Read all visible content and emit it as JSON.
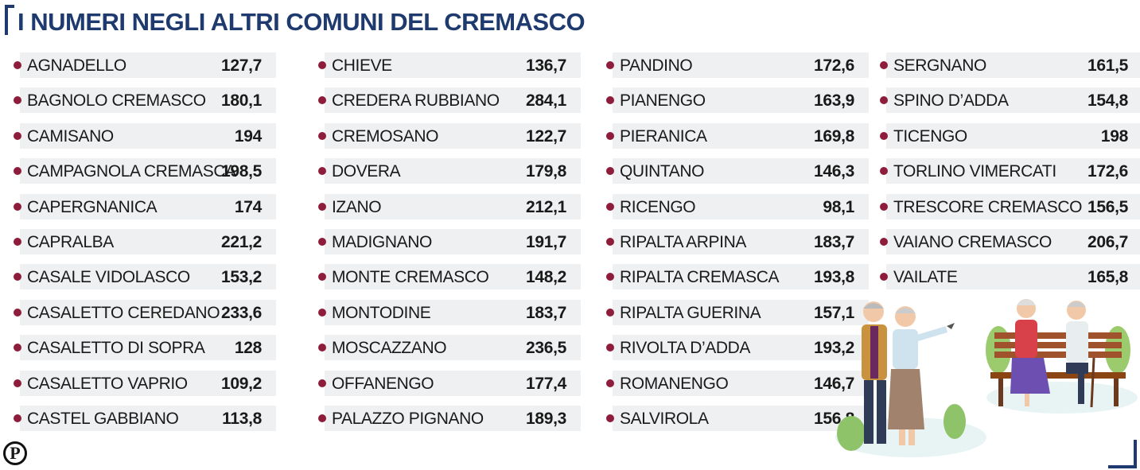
{
  "title": "I NUMERI NEGLI ALTRI COMUNI DEL CREMASCO",
  "columns": [
    [
      {
        "name": "AGNADELLO",
        "value": "127,7"
      },
      {
        "name": "BAGNOLO CREMASCO",
        "value": "180,1"
      },
      {
        "name": "CAMISANO",
        "value": "194"
      },
      {
        "name": "CAMPAGNOLA CREMASCA",
        "value": "198,5"
      },
      {
        "name": "CAPERGNANICA",
        "value": "174"
      },
      {
        "name": "CAPRALBA",
        "value": "221,2"
      },
      {
        "name": "CASALE VIDOLASCO",
        "value": "153,2"
      },
      {
        "name": "CASALETTO CEREDANO",
        "value": "233,6"
      },
      {
        "name": "CASALETTO DI SOPRA",
        "value": "128"
      },
      {
        "name": "CASALETTO VAPRIO",
        "value": "109,2"
      },
      {
        "name": "CASTEL GABBIANO",
        "value": "113,8"
      }
    ],
    [
      {
        "name": "CHIEVE",
        "value": "136,7"
      },
      {
        "name": "CREDERA RUBBIANO",
        "value": "284,1"
      },
      {
        "name": "CREMOSANO",
        "value": "122,7"
      },
      {
        "name": "DOVERA",
        "value": "179,8"
      },
      {
        "name": "IZANO",
        "value": "212,1"
      },
      {
        "name": "MADIGNANO",
        "value": "191,7"
      },
      {
        "name": "MONTE CREMASCO",
        "value": "148,2"
      },
      {
        "name": "MONTODINE",
        "value": "183,7"
      },
      {
        "name": "MOSCAZZANO",
        "value": "236,5"
      },
      {
        "name": "OFFANENGO",
        "value": "177,4"
      },
      {
        "name": "PALAZZO PIGNANO",
        "value": "189,3"
      }
    ],
    [
      {
        "name": "PANDINO",
        "value": "172,6"
      },
      {
        "name": "PIANENGO",
        "value": "163,9"
      },
      {
        "name": "PIERANICA",
        "value": "169,8"
      },
      {
        "name": "QUINTANO",
        "value": "146,3"
      },
      {
        "name": "RICENGO",
        "value": "98,1"
      },
      {
        "name": "RIPALTA ARPINA",
        "value": "183,7"
      },
      {
        "name": "RIPALTA CREMASCA",
        "value": "193,8"
      },
      {
        "name": "RIPALTA GUERINA",
        "value": "157,1"
      },
      {
        "name": "RIVOLTA D’ADDA",
        "value": "193,2"
      },
      {
        "name": "ROMANENGO",
        "value": "146,7"
      },
      {
        "name": "SALVIROLA",
        "value": "156,8"
      }
    ],
    [
      {
        "name": "SERGNANO",
        "value": "161,5"
      },
      {
        "name": "SPINO D’ADDA",
        "value": "154,8"
      },
      {
        "name": "TICENGO",
        "value": "198"
      },
      {
        "name": "TORLINO VIMERCATI",
        "value": "172,6"
      },
      {
        "name": "TRESCORE CREMASCO",
        "value": "156,5"
      },
      {
        "name": "VAIANO CREMASCO",
        "value": "206,7"
      },
      {
        "name": "VAILATE",
        "value": "165,8"
      }
    ]
  ],
  "logo_letter": "P",
  "colors": {
    "accent": "#1f3a6e",
    "bullet": "#8e1d3c",
    "row_bg": "#eef0f1"
  }
}
